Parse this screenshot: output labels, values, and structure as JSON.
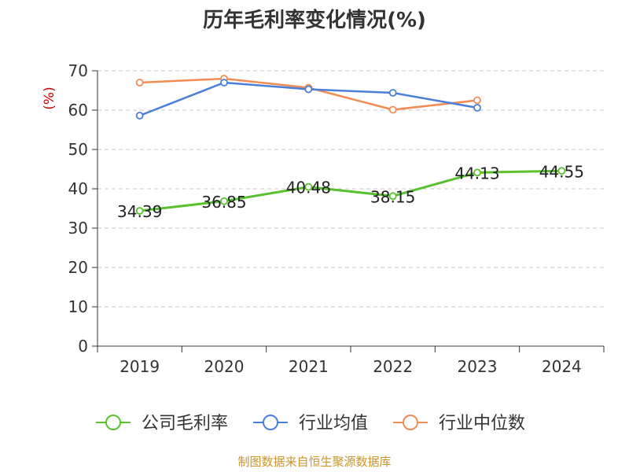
{
  "chart_data": {
    "type": "line",
    "title": "历年毛利率变化情况(%)",
    "ylabel": "(%)",
    "categories": [
      "2019",
      "2020",
      "2021",
      "2022",
      "2023",
      "2024"
    ],
    "ylim": [
      0,
      70
    ],
    "yticks": [
      0,
      10,
      20,
      30,
      40,
      50,
      60,
      70
    ],
    "grid": true,
    "legend_position": "bottom",
    "series": [
      {
        "name": "公司毛利率",
        "color": "#5ac12e",
        "values": [
          34.39,
          36.85,
          40.48,
          38.15,
          44.13,
          44.55
        ],
        "labels": [
          "34.39",
          "36.85",
          "40.48",
          "38.15",
          "44.13",
          "44.55"
        ]
      },
      {
        "name": "行业均值",
        "color": "#4a7fd8",
        "values": [
          58.6,
          67.0,
          65.3,
          64.4,
          60.6,
          null
        ]
      },
      {
        "name": "行业中位数",
        "color": "#f28c55",
        "values": [
          67.0,
          68.0,
          65.7,
          60.1,
          62.5,
          null
        ]
      }
    ]
  },
  "source": "制图数据来自恒生聚源数据库"
}
